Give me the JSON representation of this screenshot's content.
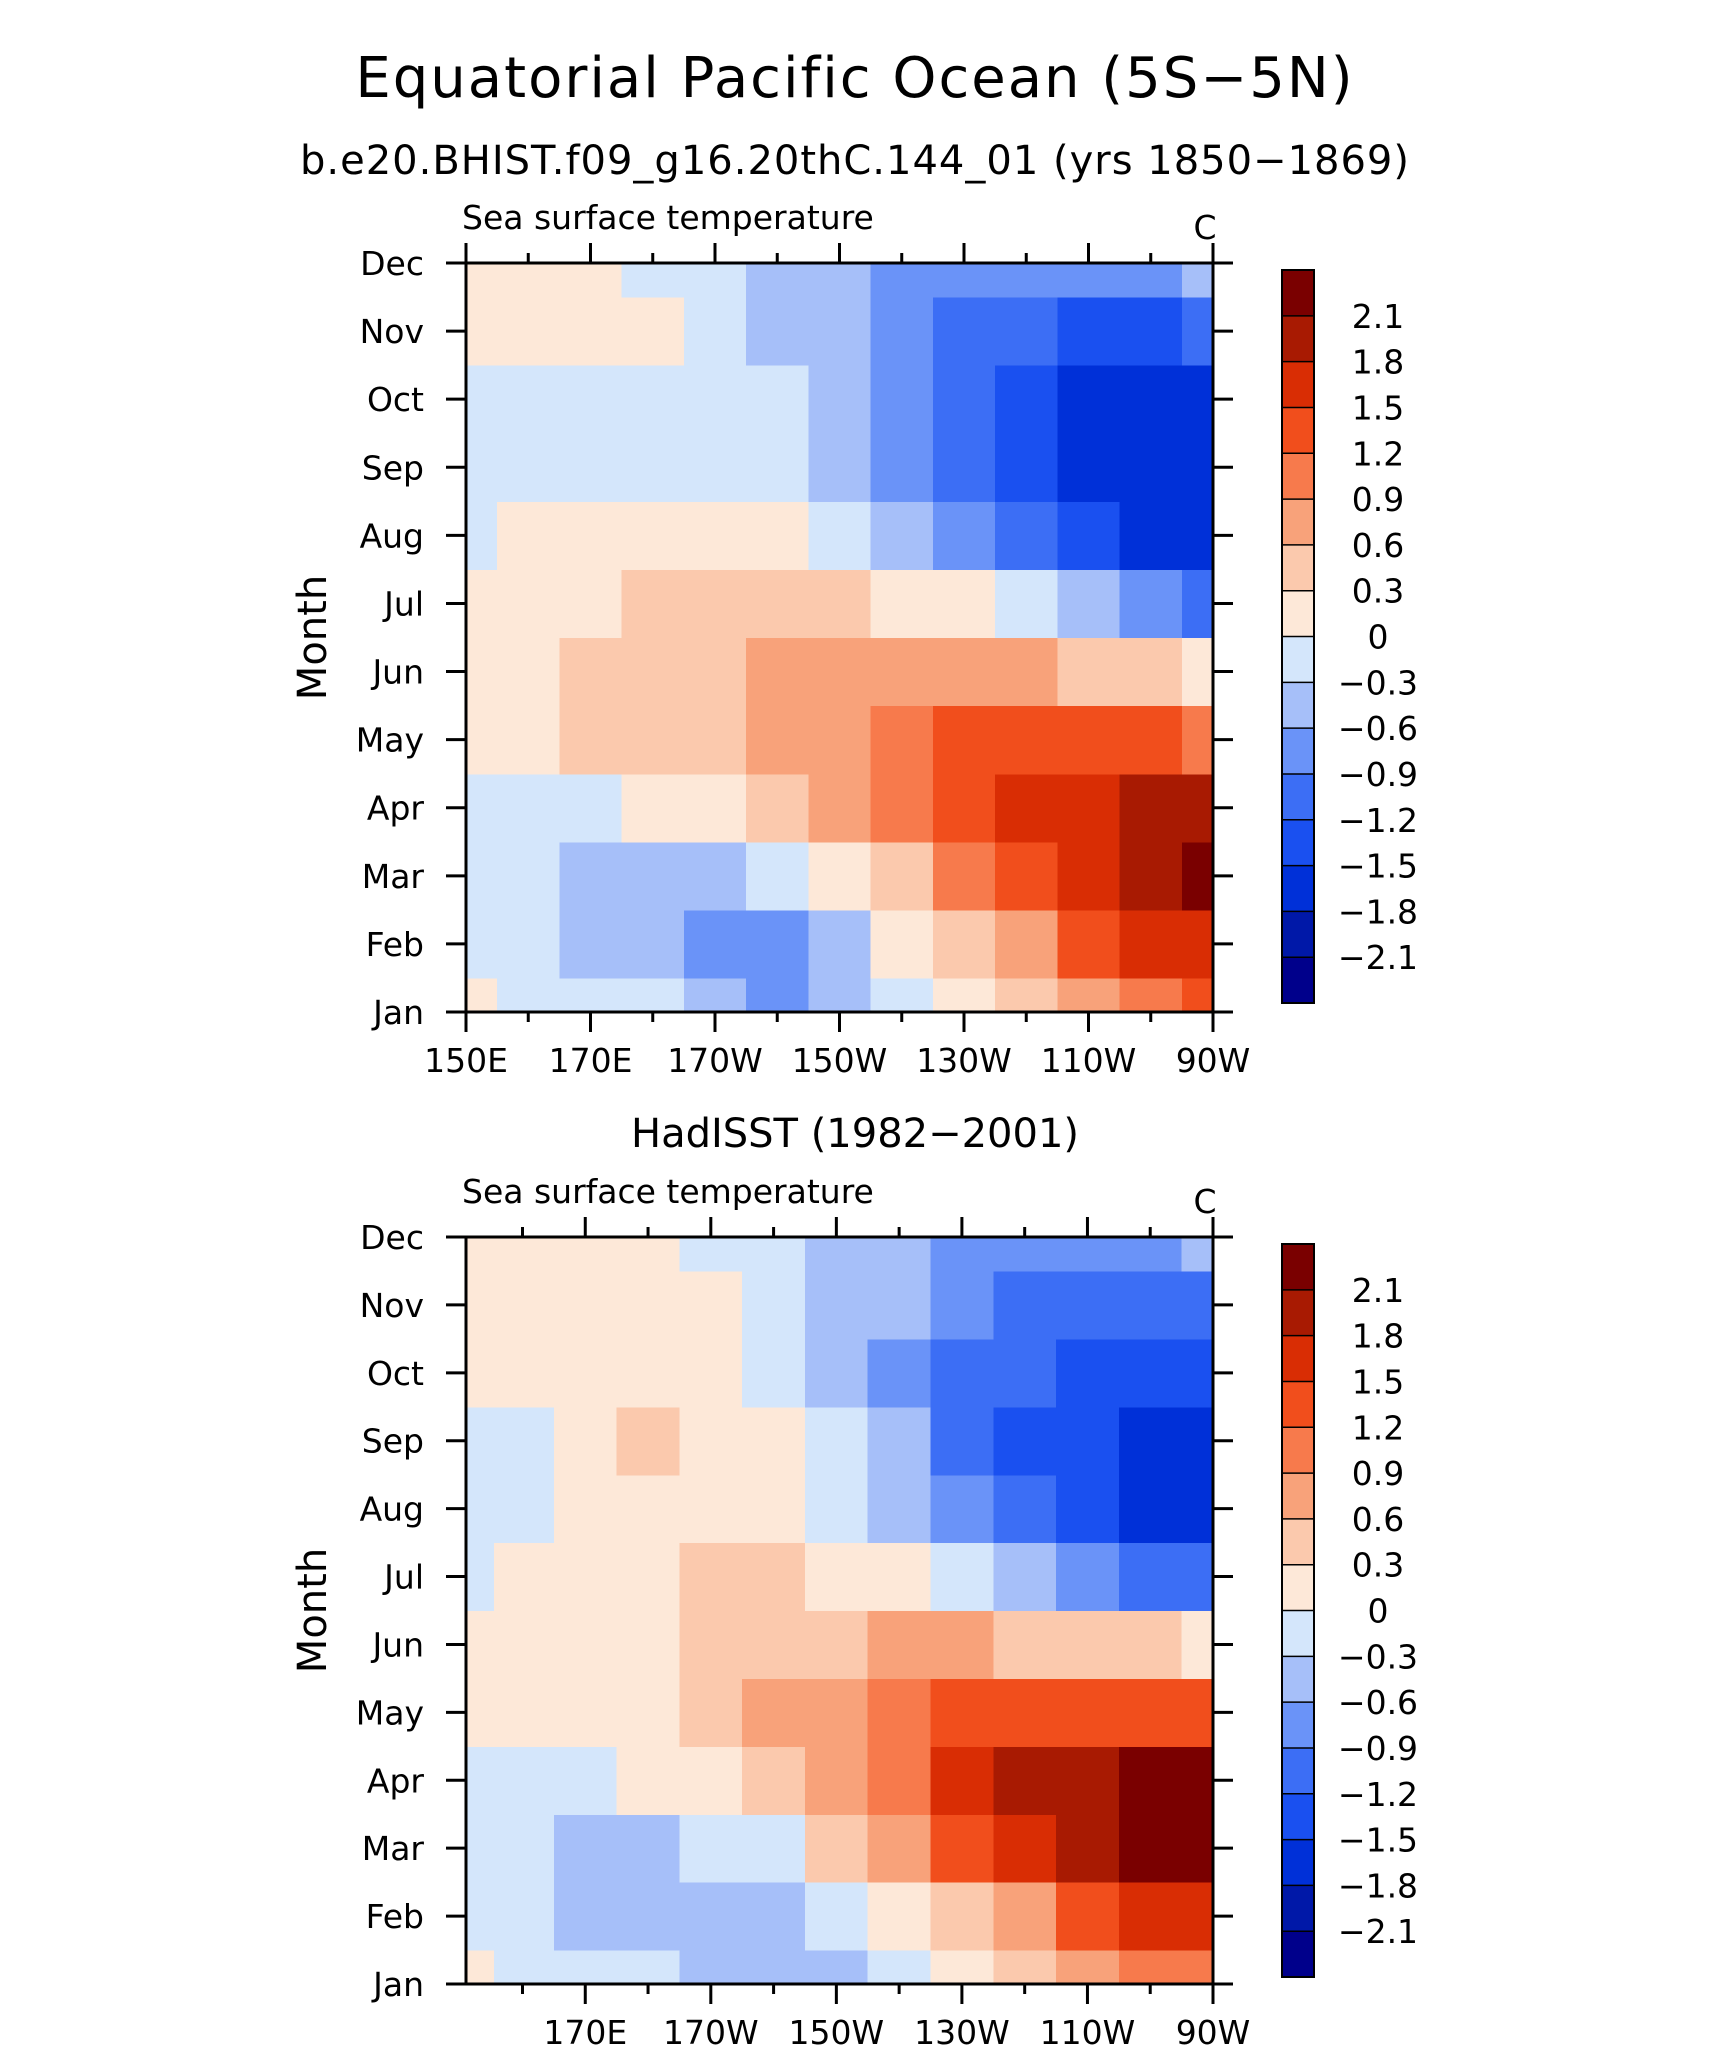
{
  "figure": {
    "title": "Equatorial Pacific Ocean (5S−5N)",
    "subtitle": "b.e20.BHIST.f09_g16.20thC.144_01 (yrs 1850−1869)"
  },
  "chart_data": [
    {
      "type": "heatmap",
      "title": "b.e20.BHIST.f09_g16.20thC.144_01 (yrs 1850−1869)",
      "left_label": "Sea surface temperature",
      "unit": "C",
      "xlabel": "",
      "ylabel": "Month",
      "x_ticks": [
        "150E",
        "170E",
        "170W",
        "150W",
        "130W",
        "110W",
        "90W"
      ],
      "x_tick_values": [
        150,
        170,
        190,
        210,
        230,
        250,
        270
      ],
      "xlim": [
        150,
        270
      ],
      "y_ticks": [
        "Jan",
        "Feb",
        "Mar",
        "Apr",
        "May",
        "Jun",
        "Jul",
        "Aug",
        "Sep",
        "Oct",
        "Nov",
        "Dec"
      ],
      "x": [
        150,
        160,
        170,
        180,
        190,
        200,
        210,
        220,
        230,
        240,
        250,
        260,
        270
      ],
      "y": [
        "Jan",
        "Feb",
        "Mar",
        "Apr",
        "May",
        "Jun",
        "Jul",
        "Aug",
        "Sep",
        "Oct",
        "Nov",
        "Dec"
      ],
      "values": [
        [
          0.0,
          -0.1,
          -0.2,
          -0.3,
          -0.5,
          -0.8,
          -0.6,
          -0.2,
          0.2,
          0.5,
          0.8,
          1.1,
          1.3
        ],
        [
          -0.1,
          -0.2,
          -0.4,
          -0.6,
          -0.8,
          -0.7,
          -0.4,
          0.0,
          0.4,
          0.8,
          1.2,
          1.5,
          1.7
        ],
        [
          -0.1,
          -0.3,
          -0.5,
          -0.5,
          -0.4,
          -0.2,
          0.1,
          0.5,
          0.9,
          1.3,
          1.7,
          1.9,
          2.2
        ],
        [
          -0.1,
          -0.1,
          -0.1,
          0.0,
          0.1,
          0.3,
          0.6,
          0.9,
          1.2,
          1.5,
          1.7,
          1.9,
          1.9
        ],
        [
          0.1,
          0.2,
          0.3,
          0.4,
          0.5,
          0.7,
          0.8,
          1.0,
          1.2,
          1.3,
          1.3,
          1.2,
          1.0
        ],
        [
          0.1,
          0.2,
          0.3,
          0.4,
          0.5,
          0.6,
          0.7,
          0.8,
          0.8,
          0.7,
          0.5,
          0.3,
          0.1
        ],
        [
          0.0,
          0.1,
          0.2,
          0.3,
          0.4,
          0.4,
          0.3,
          0.2,
          0.0,
          -0.3,
          -0.6,
          -0.9,
          -1.1
        ],
        [
          -0.1,
          0.0,
          0.1,
          0.1,
          0.1,
          0.0,
          -0.2,
          -0.5,
          -0.8,
          -1.1,
          -1.4,
          -1.6,
          -1.7
        ],
        [
          -0.1,
          -0.1,
          -0.1,
          -0.1,
          -0.1,
          -0.2,
          -0.4,
          -0.7,
          -1.1,
          -1.4,
          -1.7,
          -1.8,
          -1.8
        ],
        [
          -0.1,
          -0.1,
          -0.1,
          -0.1,
          -0.2,
          -0.3,
          -0.5,
          -0.8,
          -1.1,
          -1.4,
          -1.6,
          -1.7,
          -1.7
        ],
        [
          0.1,
          0.1,
          0.1,
          0.0,
          -0.2,
          -0.4,
          -0.6,
          -0.8,
          -1.0,
          -1.2,
          -1.3,
          -1.3,
          -1.2
        ],
        [
          0.1,
          0.1,
          0.1,
          -0.1,
          -0.2,
          -0.4,
          -0.6,
          -0.7,
          -0.8,
          -0.8,
          -0.8,
          -0.7,
          -0.6
        ]
      ],
      "colorbar_labels": [
        "2.1",
        "1.8",
        "1.5",
        "1.2",
        "0.9",
        "0.6",
        "0.3",
        "0",
        "−0.3",
        "−0.6",
        "−0.9",
        "−1.2",
        "−1.5",
        "−1.8",
        "−2.1"
      ]
    },
    {
      "type": "heatmap",
      "title": "HadISST (1982−2001)",
      "left_label": "Sea surface temperature",
      "unit": "C",
      "xlabel": "",
      "ylabel": "Month",
      "x_ticks": [
        "170E",
        "170W",
        "150W",
        "130W",
        "110W",
        "90W"
      ],
      "x_tick_values": [
        170,
        190,
        210,
        230,
        250,
        270
      ],
      "xlim": [
        151,
        270
      ],
      "y_ticks": [
        "Jan",
        "Feb",
        "Mar",
        "Apr",
        "May",
        "Jun",
        "Jul",
        "Aug",
        "Sep",
        "Oct",
        "Nov",
        "Dec"
      ],
      "x": [
        151,
        160,
        170,
        180,
        190,
        200,
        210,
        220,
        230,
        240,
        250,
        260,
        270
      ],
      "y": [
        "Jan",
        "Feb",
        "Mar",
        "Apr",
        "May",
        "Jun",
        "Jul",
        "Aug",
        "Sep",
        "Oct",
        "Nov",
        "Dec"
      ],
      "values": [
        [
          0.0,
          -0.1,
          -0.2,
          -0.3,
          -0.4,
          -0.5,
          -0.4,
          -0.3,
          0.0,
          0.3,
          0.6,
          0.9,
          1.0
        ],
        [
          -0.1,
          -0.2,
          -0.4,
          -0.5,
          -0.5,
          -0.4,
          -0.2,
          0.1,
          0.5,
          0.8,
          1.2,
          1.5,
          1.7
        ],
        [
          -0.1,
          -0.3,
          -0.5,
          -0.5,
          -0.3,
          -0.1,
          0.3,
          0.8,
          1.2,
          1.6,
          1.9,
          2.2,
          2.3
        ],
        [
          -0.1,
          -0.2,
          -0.2,
          0.0,
          0.2,
          0.5,
          0.8,
          1.1,
          1.5,
          1.8,
          2.0,
          2.2,
          2.1
        ],
        [
          0.0,
          0.1,
          0.1,
          0.2,
          0.4,
          0.6,
          0.8,
          1.0,
          1.2,
          1.3,
          1.4,
          1.4,
          1.3
        ],
        [
          0.0,
          0.1,
          0.1,
          0.2,
          0.3,
          0.4,
          0.5,
          0.6,
          0.6,
          0.5,
          0.4,
          0.3,
          0.2
        ],
        [
          -0.1,
          0.0,
          0.1,
          0.2,
          0.3,
          0.3,
          0.2,
          0.0,
          -0.2,
          -0.5,
          -0.8,
          -1.0,
          -1.1
        ],
        [
          -0.1,
          -0.1,
          0.1,
          0.1,
          0.1,
          0.0,
          -0.3,
          -0.6,
          -0.9,
          -1.2,
          -1.5,
          -1.6,
          -1.6
        ],
        [
          -0.1,
          -0.1,
          0.1,
          0.3,
          0.1,
          0.0,
          -0.3,
          -0.6,
          -1.0,
          -1.3,
          -1.5,
          -1.6,
          -1.6
        ],
        [
          0.0,
          0.1,
          0.1,
          0.1,
          0.0,
          -0.1,
          -0.4,
          -0.7,
          -1.0,
          -1.2,
          -1.4,
          -1.5,
          -1.5
        ],
        [
          0.1,
          0.1,
          0.1,
          0.1,
          0.0,
          -0.2,
          -0.4,
          -0.6,
          -0.8,
          -1.0,
          -1.2,
          -1.2,
          -1.2
        ],
        [
          0.1,
          0.1,
          0.1,
          0.0,
          -0.1,
          -0.3,
          -0.5,
          -0.6,
          -0.7,
          -0.8,
          -0.8,
          -0.7,
          -0.5
        ]
      ],
      "colorbar_labels": [
        "2.1",
        "1.8",
        "1.5",
        "1.2",
        "0.9",
        "0.6",
        "0.3",
        "0",
        "−0.3",
        "−0.6",
        "−0.9",
        "−1.2",
        "−1.5",
        "−1.8",
        "−2.1"
      ]
    }
  ],
  "colors": {
    "palette": [
      "#00008b",
      "#0018a8",
      "#0030d8",
      "#1a50f0",
      "#3c6ef5",
      "#6a93f8",
      "#a6bff9",
      "#d4e6fb",
      "#fde8d8",
      "#fbc9ad",
      "#f8a27a",
      "#f77a4c",
      "#f14e1c",
      "#d92d04",
      "#a81a02",
      "#7a0000"
    ],
    "levels": [
      -2.1,
      -1.8,
      -1.5,
      -1.2,
      -0.9,
      -0.6,
      -0.3,
      0,
      0.3,
      0.6,
      0.9,
      1.2,
      1.5,
      1.8,
      2.1
    ]
  }
}
